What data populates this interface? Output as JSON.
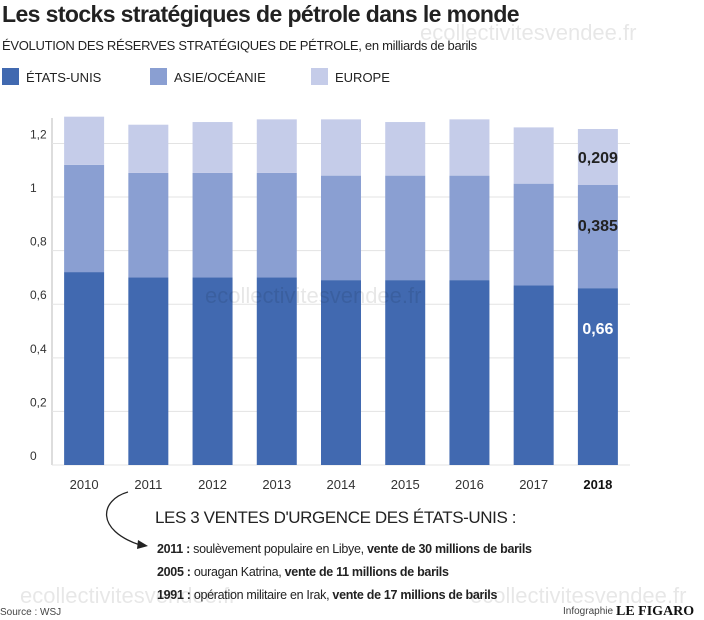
{
  "chart_data": {
    "type": "stacked-bar",
    "title": "Les stocks stratégiques de pétrole dans le monde",
    "subtitle": "ÉVOLUTION DES RÉSERVES STRATÉGIQUES DE PÉTROLE, en milliards de barils",
    "categories": [
      "2010",
      "2011",
      "2012",
      "2013",
      "2014",
      "2015",
      "2016",
      "2017",
      "2018"
    ],
    "series": [
      {
        "name": "ÉTATS-UNIS",
        "color": "#4169b0",
        "values": [
          0.72,
          0.7,
          0.7,
          0.7,
          0.69,
          0.69,
          0.69,
          0.67,
          0.66
        ],
        "value_labels": [
          null,
          null,
          null,
          null,
          null,
          null,
          null,
          null,
          "0,66"
        ]
      },
      {
        "name": "ASIE/OCÉANIE",
        "color": "#8a9fd2",
        "values": [
          0.4,
          0.39,
          0.39,
          0.39,
          0.39,
          0.39,
          0.39,
          0.38,
          0.385
        ],
        "value_labels": [
          null,
          null,
          null,
          null,
          null,
          null,
          null,
          null,
          "0,385"
        ]
      },
      {
        "name": "EUROPE",
        "color": "#c5cce9",
        "values": [
          0.18,
          0.18,
          0.19,
          0.2,
          0.21,
          0.2,
          0.21,
          0.21,
          0.209
        ],
        "value_labels": [
          null,
          null,
          null,
          null,
          null,
          null,
          null,
          null,
          "0,209"
        ]
      }
    ],
    "ylim": [
      0,
      1.254
    ],
    "yticks": [
      0,
      {
        "value": 0.2,
        "label": "0,2"
      },
      {
        "value": 0.4,
        "label": "0,4"
      },
      {
        "value": 0.6,
        "label": "0,6"
      },
      {
        "value": 0.8,
        "label": "0,8"
      },
      1,
      {
        "value": 1.2,
        "label": "1,2"
      }
    ],
    "grid": true,
    "annotation": {
      "heading": "LES 3 VENTES D'URGENCE DES ÉTATS-UNIS :",
      "lines": [
        {
          "year": "2011 :",
          "text": " soulèvement populaire en Libye, ",
          "bold": "vente de 30 millions de barils"
        },
        {
          "year": "2005 :",
          "text": " ouragan Katrina, ",
          "bold": "vente de 11 millions de barils"
        },
        {
          "year": "1991 :",
          "text": " opération militaire en Irak, ",
          "bold": "vente de 17 millions de barils"
        }
      ]
    },
    "source": "Source : WSJ",
    "credit": "Infographie",
    "logo": "LE FIGARO",
    "watermark": "ecollectivitesvendee.fr"
  }
}
